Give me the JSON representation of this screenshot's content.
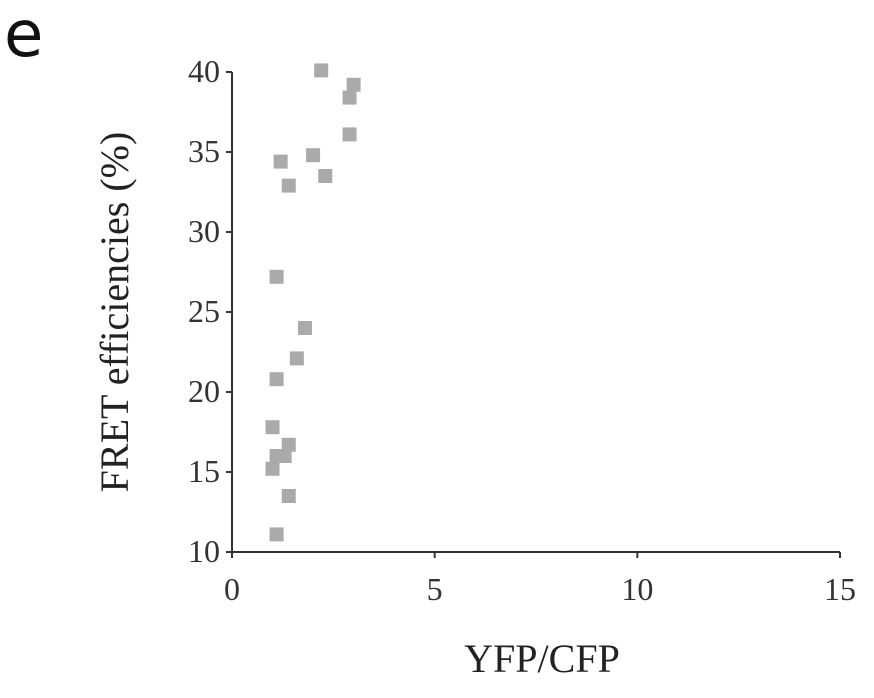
{
  "panel_label": "e",
  "chart_data": {
    "type": "scatter",
    "xlabel": "YFP/CFP",
    "ylabel": "FRET efficiencies (%)",
    "xlim": [
      0,
      15
    ],
    "ylim": [
      10,
      40
    ],
    "xticks": [
      "0",
      "5",
      "10",
      "15"
    ],
    "yticks": [
      "10",
      "15",
      "20",
      "25",
      "30",
      "35",
      "40"
    ],
    "grid": false,
    "points": [
      {
        "x": 2.2,
        "y": 40.1
      },
      {
        "x": 3.0,
        "y": 39.2
      },
      {
        "x": 2.9,
        "y": 38.4
      },
      {
        "x": 2.9,
        "y": 36.1
      },
      {
        "x": 2.0,
        "y": 34.8
      },
      {
        "x": 1.2,
        "y": 34.4
      },
      {
        "x": 2.3,
        "y": 33.5
      },
      {
        "x": 1.4,
        "y": 32.9
      },
      {
        "x": 1.1,
        "y": 27.2
      },
      {
        "x": 1.8,
        "y": 24.0
      },
      {
        "x": 1.6,
        "y": 22.1
      },
      {
        "x": 1.1,
        "y": 20.8
      },
      {
        "x": 1.0,
        "y": 17.8
      },
      {
        "x": 1.4,
        "y": 16.7
      },
      {
        "x": 1.1,
        "y": 16.0
      },
      {
        "x": 1.3,
        "y": 16.0
      },
      {
        "x": 1.0,
        "y": 15.2
      },
      {
        "x": 1.4,
        "y": 13.5
      },
      {
        "x": 1.1,
        "y": 11.1
      }
    ]
  }
}
